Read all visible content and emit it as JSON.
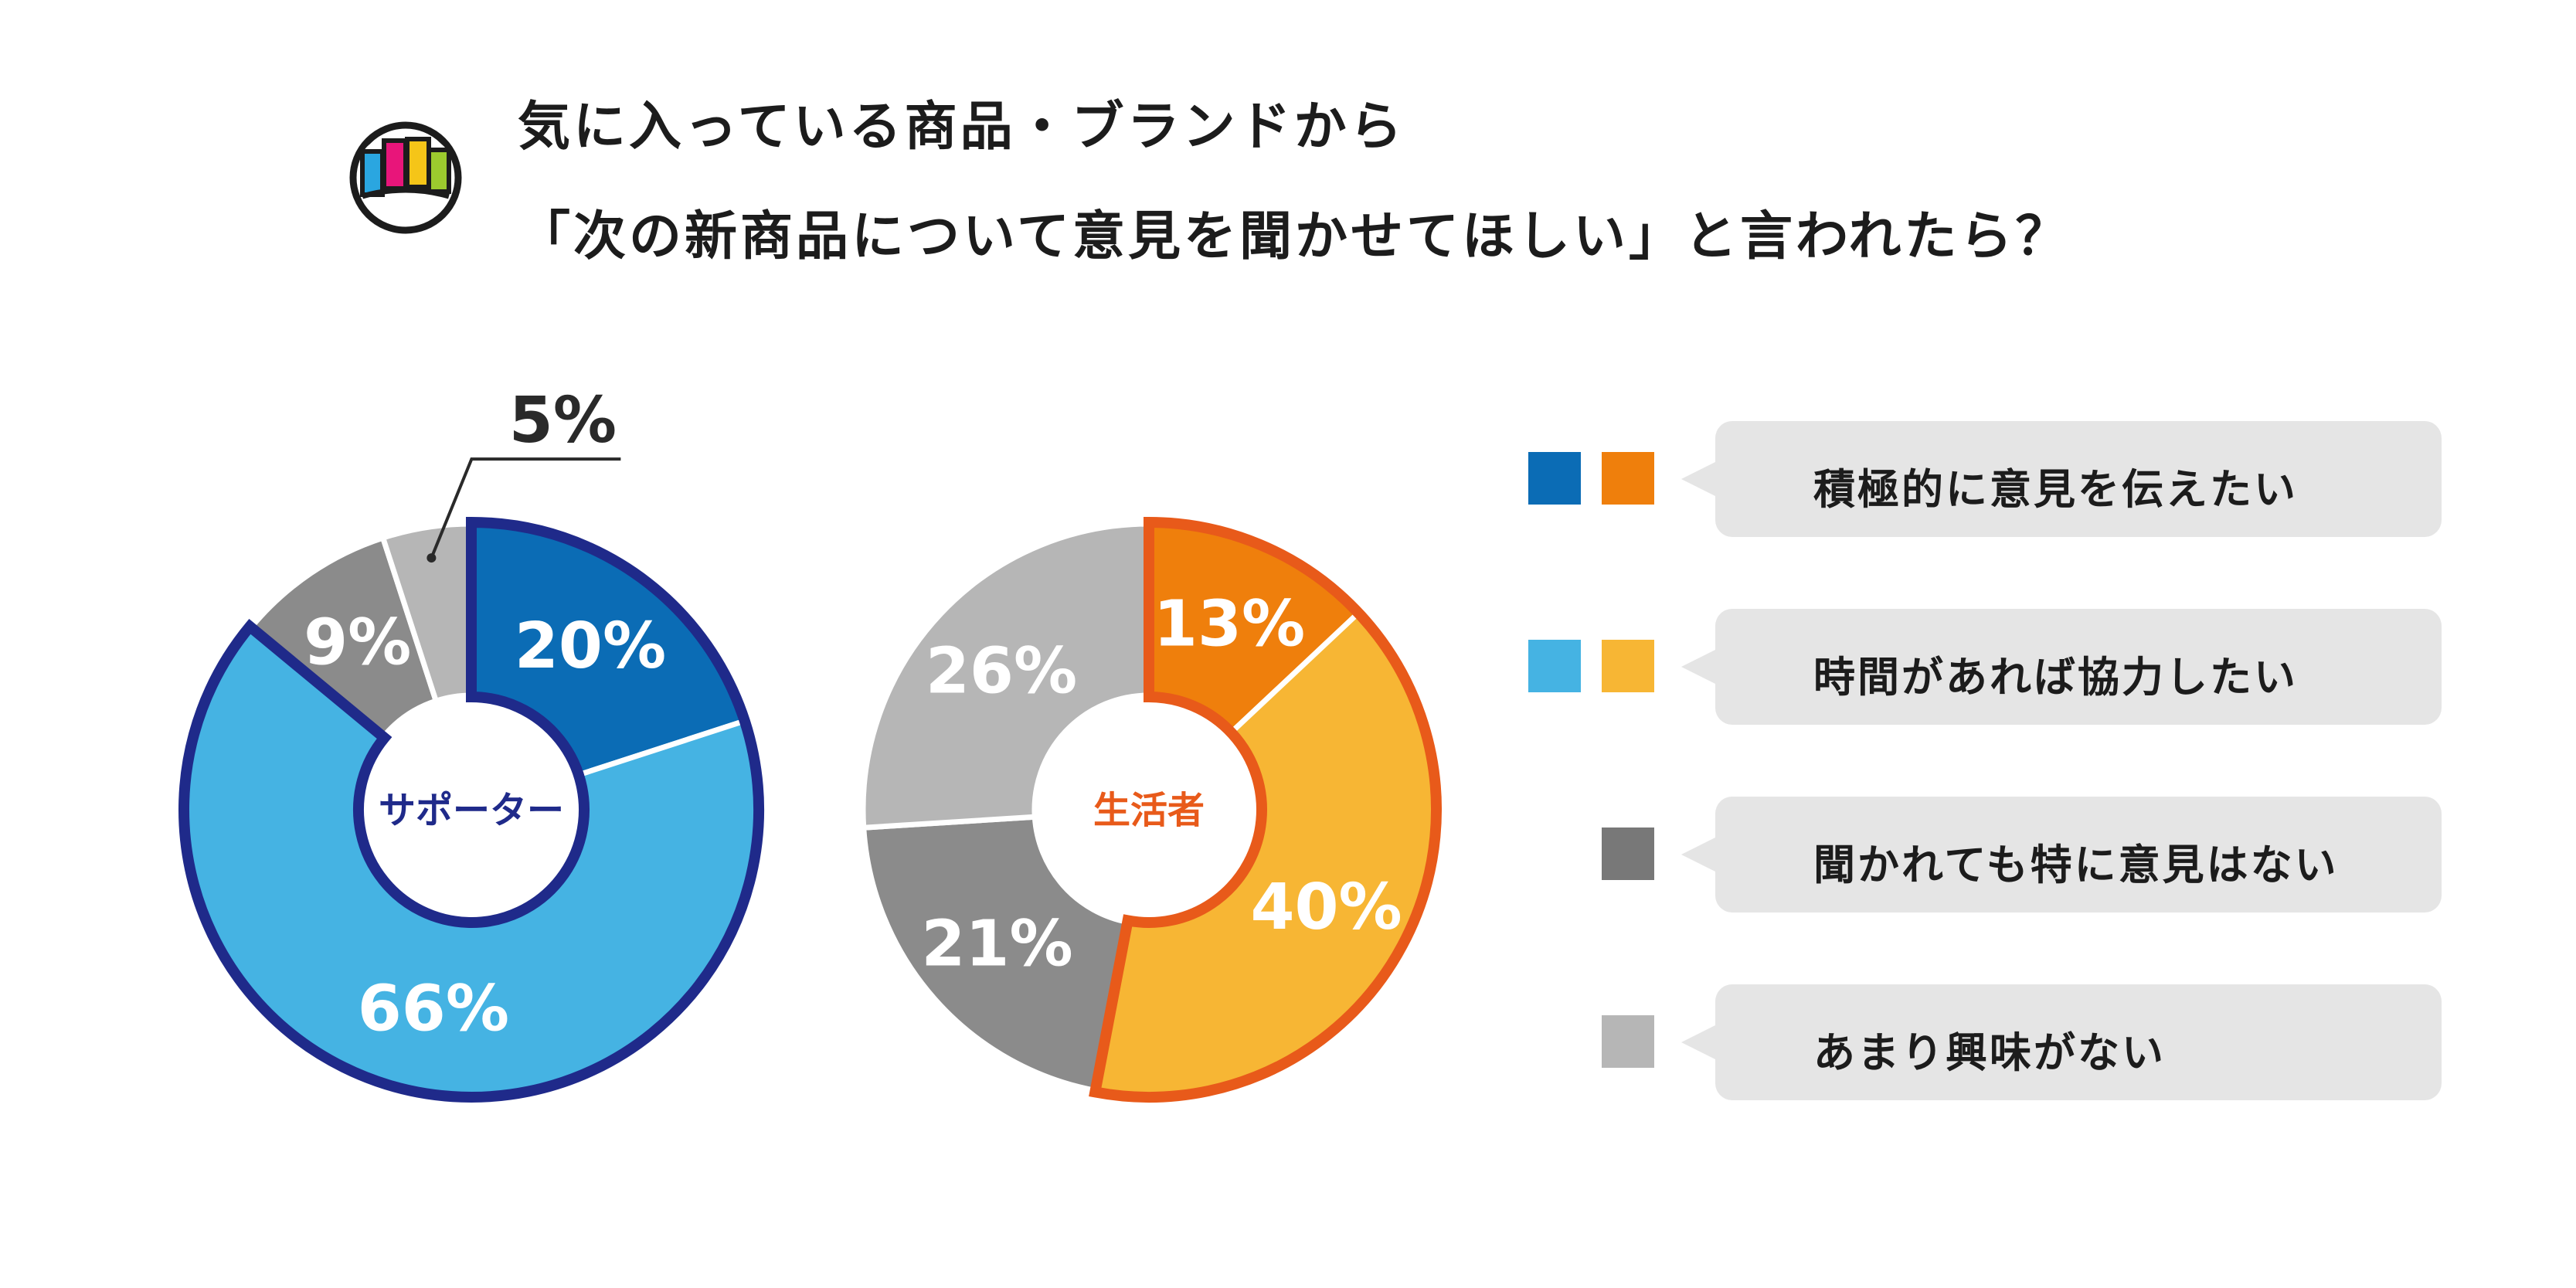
{
  "header": {
    "line1": "気に入っている商品・ブランドから",
    "line2": "「次の新商品について意見を聞かせてほしい」と言われたら？"
  },
  "chart_data": [
    {
      "type": "donut",
      "center_label": "サポーター",
      "slices": [
        {
          "category": "積極的に意見を伝えたい",
          "value": 20,
          "label": "20%"
        },
        {
          "category": "時間があれば協力したい",
          "value": 66,
          "label": "66%"
        },
        {
          "category": "聞かれても特に意見はない",
          "value": 9,
          "label": "9%"
        },
        {
          "category": "あまり興味がない",
          "value": 5,
          "label": "5%"
        }
      ],
      "colors": [
        "#0b6cb5",
        "#45b3e3",
        "#8b8b8b",
        "#b6b6b6"
      ],
      "outline_color": "#1f2a8a",
      "highlighted": [
        "積極的に意見を伝えたい",
        "時間があれば協力したい"
      ]
    },
    {
      "type": "donut",
      "center_label": "生活者",
      "slices": [
        {
          "category": "積極的に意見を伝えたい",
          "value": 13,
          "label": "13%"
        },
        {
          "category": "時間があれば協力したい",
          "value": 40,
          "label": "40%"
        },
        {
          "category": "聞かれても特に意見はない",
          "value": 21,
          "label": "21%"
        },
        {
          "category": "あまり興味がない",
          "value": 26,
          "label": "26%"
        }
      ],
      "colors": [
        "#ef7f0c",
        "#f7b634",
        "#8b8b8b",
        "#b6b6b6"
      ],
      "outline_color": "#e85a1a",
      "highlighted": [
        "積極的に意見を伝えたい",
        "時間があれば協力したい"
      ]
    }
  ],
  "legend": [
    {
      "label": "積極的に意見を伝えたい",
      "colors": [
        "#0b6cb5",
        "#ef7f0c"
      ]
    },
    {
      "label": "時間があれば協力したい",
      "colors": [
        "#45b3e3",
        "#f7b634"
      ]
    },
    {
      "label": "聞かれても特に意見はない",
      "colors": [
        "#787878"
      ]
    },
    {
      "label": "あまり興味がない",
      "colors": [
        "#b6b6b6"
      ]
    }
  ],
  "logo_colors": [
    "#2aa6e0",
    "#e8157a",
    "#f5c518",
    "#9ccb2e"
  ]
}
